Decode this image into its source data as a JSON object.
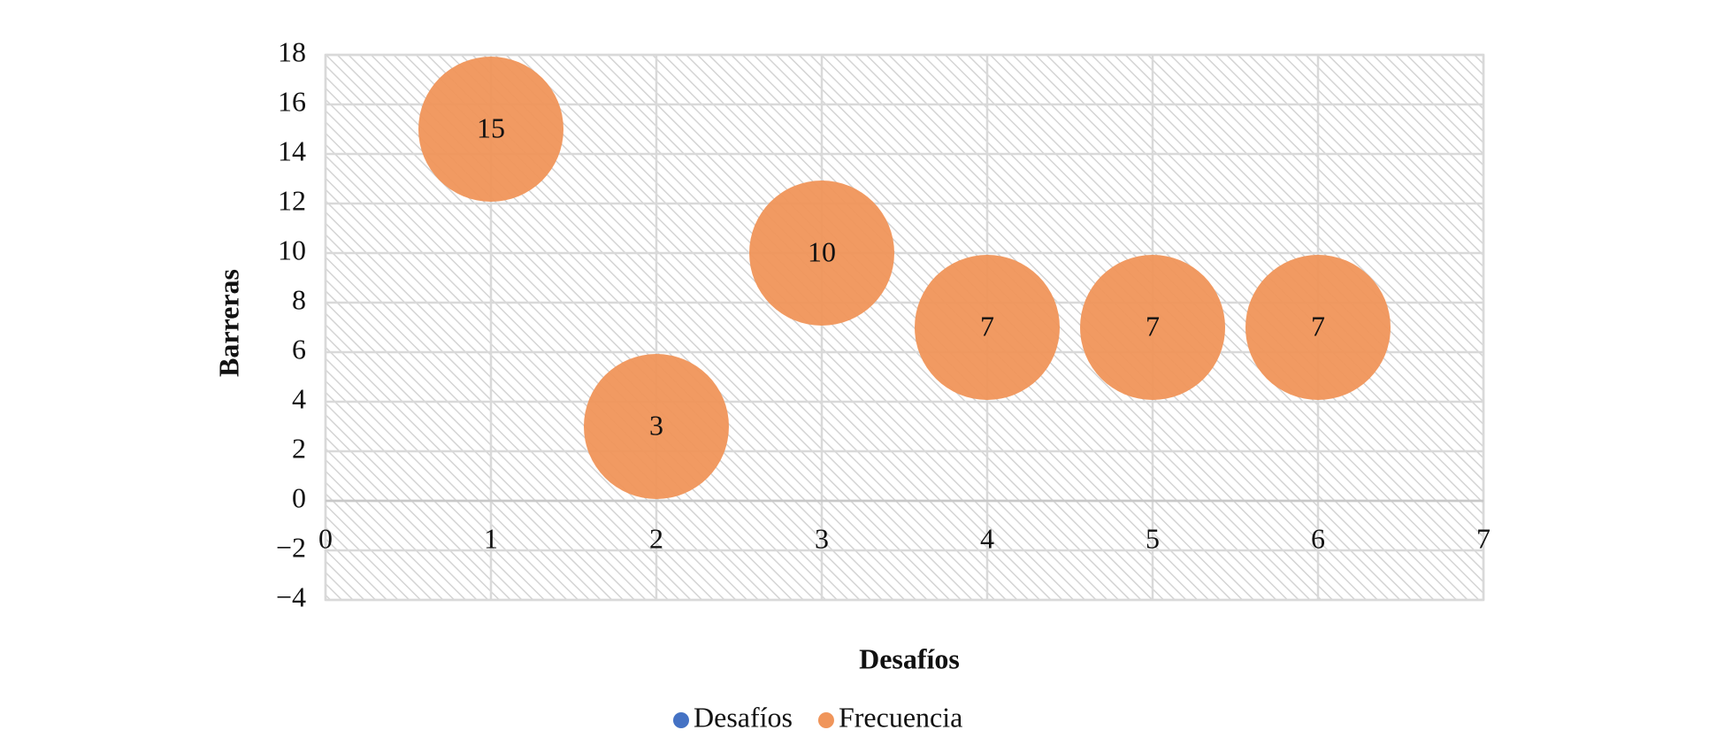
{
  "chart_data": {
    "type": "bubble",
    "x_label": "Desafíos",
    "y_label": "Barreras",
    "x": [
      1,
      2,
      3,
      4,
      5,
      6
    ],
    "series": [
      {
        "name": "Desafíos",
        "color": "#4472c4"
      },
      {
        "name": "Frecuencia",
        "color": "#f0955a",
        "values": [
          15,
          3,
          10,
          7,
          7,
          7
        ]
      }
    ],
    "xlim": [
      0,
      7
    ],
    "xticks": [
      0,
      1,
      2,
      3,
      4,
      5,
      6,
      7
    ],
    "ylim": [
      -4,
      18
    ],
    "yticks": [
      {
        "value": -4,
        "label": "−4"
      },
      {
        "value": -2,
        "label": "−2"
      },
      0,
      2,
      4,
      6,
      8,
      10,
      12,
      14,
      16,
      18
    ],
    "grid": true,
    "legend": "bottom"
  }
}
